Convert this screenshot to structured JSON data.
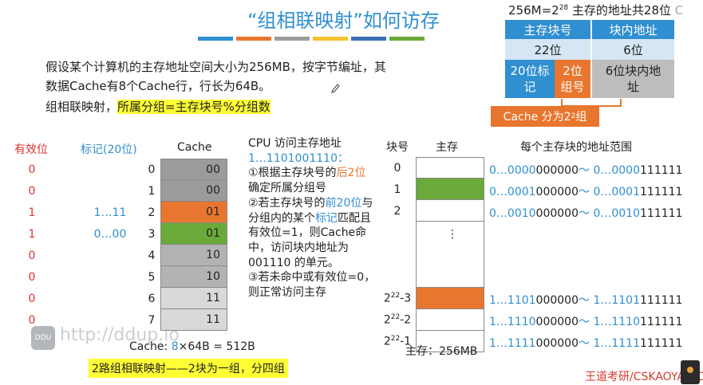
{
  "title": "“组相联映射”如何访存",
  "title_stripe_colors": [
    "#2f8fd0",
    "#e9762e",
    "#9b9b9b",
    "#f2c12e",
    "#3b6fb6",
    "#6aaa3a"
  ],
  "top_right": {
    "formula_prefix": "256M=2",
    "formula_exp": "28",
    "formula_suffix": " 主存的地址共28位",
    "ghost_text": "C",
    "table_header": [
      "主存块号",
      "块内地址"
    ],
    "table_bits": [
      "22位",
      "6位"
    ],
    "split_tag": "20位标记",
    "split_group": "2位组号",
    "split_offset": "6位块内地址",
    "cache_split_text": "Cache 分为2",
    "cache_split_exp": "2",
    "cache_split_suffix": "组"
  },
  "intro": {
    "line1": "假设某个计算机的主存地址空间大小为256MB，按字节编址，其数据Cache有8个Cache行，行长为64B。",
    "rule_prefix": "组相联映射，",
    "rule_highlight": "所属分组=主存块号%分组数"
  },
  "cache": {
    "valid_header": "有效位",
    "tag_header": "标记(20位)",
    "cache_header": "Cache",
    "rows": [
      {
        "num": "0",
        "valid": "0",
        "tag": "",
        "label": "00",
        "color": "#9b9b9b"
      },
      {
        "num": "1",
        "valid": "0",
        "tag": "",
        "label": "00",
        "color": "#9b9b9b"
      },
      {
        "num": "2",
        "valid": "1",
        "tag": "1…11",
        "label": "01",
        "color": "#e9762e"
      },
      {
        "num": "3",
        "valid": "1",
        "tag": "0…00",
        "label": "01",
        "color": "#6aaa3a"
      },
      {
        "num": "4",
        "valid": "0",
        "tag": "",
        "label": "10",
        "color": "#b3b3b3"
      },
      {
        "num": "5",
        "valid": "0",
        "tag": "",
        "label": "10",
        "color": "#b3b3b3"
      },
      {
        "num": "6",
        "valid": "0",
        "tag": "",
        "label": "11",
        "color": "#d9d9d9"
      },
      {
        "num": "7",
        "valid": "0",
        "tag": "",
        "label": "11",
        "color": "#d9d9d9"
      }
    ],
    "formula_prefix": "Cache: ",
    "formula_count": "8",
    "formula_suffix": "×64B = 512B",
    "footer": "2路组相联映射——2块为一组，分四组"
  },
  "cpu": {
    "heading": "CPU 访问主存地址",
    "address": "1…1101001110：",
    "step1_a": "①根据主存块号的",
    "step1_b": "后2位",
    "step1_c": "确定所属分组号",
    "step2_a": "②若主存块号的",
    "step2_b": "前20位",
    "step2_c": "与分组内的某个",
    "step2_d": "标记",
    "step2_e": "匹配且有效位=1，则Cache命中，访问块内地址为 001110 的单元。",
    "step3": "③若未命中或有效位=0，则正常访问主存"
  },
  "memory": {
    "blk_header": "块号",
    "mm_header": "主存",
    "range_header": "每个主存块的地址范围",
    "top_rows": [
      {
        "num": "0",
        "color": "#ffffff",
        "range_a": "0…0000",
        "range_b": "000000",
        "range_c": "〜 0…0000",
        "range_d": "111111"
      },
      {
        "num": "1",
        "color": "#6aaa3a",
        "range_a": "0…0001",
        "range_b": "000000",
        "range_c": "〜 0…0001",
        "range_d": "111111"
      },
      {
        "num": "2",
        "color": "#ffffff",
        "range_a": "0…0010",
        "range_b": "000000",
        "range_c": "〜 0…0010",
        "range_d": "111111"
      }
    ],
    "dots": "⋮",
    "bottom_rows": [
      {
        "num_base": "2",
        "num_exp": "22",
        "num_suffix": "-3",
        "color": "#e9762e",
        "range_a": "1…1101",
        "range_b": "000000",
        "range_c": "〜 1…1101",
        "range_d": "111111"
      },
      {
        "num_base": "2",
        "num_exp": "22",
        "num_suffix": "-2",
        "color": "#ffffff",
        "range_a": "1…1110",
        "range_b": "000000",
        "range_c": "〜 1…1110",
        "range_d": "111111"
      },
      {
        "num_base": "2",
        "num_exp": "22",
        "num_suffix": "-1",
        "color": "#ffffff",
        "range_a": "1…1111",
        "range_b": "000000",
        "range_c": "〜 1…1111",
        "range_d": "111111"
      }
    ],
    "size_label": "主存：256MB"
  },
  "watermark": {
    "badge": "DDU",
    "url": "http://ddup.io"
  },
  "brand": "王道考研/CSKAOYAN.COM"
}
